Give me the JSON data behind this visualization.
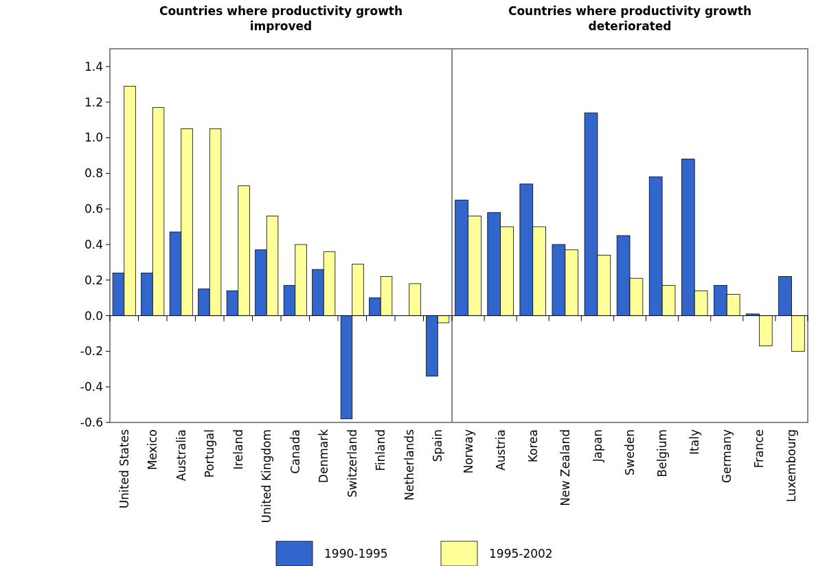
{
  "chart_data": [
    {
      "type": "bar",
      "title": "Countries where productivity growth improved",
      "categories": [
        "United States",
        "Mexico",
        "Australia",
        "Portugal",
        "Ireland",
        "United Kingdom",
        "Canada",
        "Denmark",
        "Switzerland",
        "Finland",
        "Netherlands",
        "Spain"
      ],
      "series": [
        {
          "name": "1990-1995",
          "color": "#3366cc",
          "values": [
            0.24,
            0.24,
            0.47,
            0.15,
            0.14,
            0.37,
            0.17,
            0.26,
            -0.58,
            0.1,
            null,
            -0.34
          ]
        },
        {
          "name": "1995-2002",
          "color": "#ffff99",
          "values": [
            1.29,
            1.17,
            1.05,
            1.05,
            0.73,
            0.56,
            0.4,
            0.36,
            0.29,
            0.22,
            0.18,
            -0.04
          ]
        }
      ],
      "ylim": [
        -0.6,
        1.5
      ],
      "yticks": [
        {
          "value": -0.6,
          "label": "-0.6"
        },
        {
          "value": -0.4,
          "label": "-0.4"
        },
        {
          "value": -0.2,
          "label": "-0.2"
        },
        {
          "value": 0,
          "label": "0.0"
        },
        {
          "value": 0.2,
          "label": "0.2"
        },
        {
          "value": 0.4,
          "label": "0.4"
        },
        {
          "value": 0.6,
          "label": "0.6"
        },
        {
          "value": 0.8,
          "label": "0.8"
        },
        {
          "value": 1,
          "label": "1.0"
        },
        {
          "value": 1.2,
          "label": "1.2"
        },
        {
          "value": 1.4,
          "label": "1.4"
        }
      ],
      "legend": "bottom"
    },
    {
      "type": "bar",
      "title": "Countries where productivity growth deteriorated",
      "categories": [
        "Norway",
        "Austria",
        "Korea",
        "New Zealand",
        "Japan",
        "Sweden",
        "Belgium",
        "Italy",
        "Germany",
        "France",
        "Luxembourg"
      ],
      "series": [
        {
          "color": "#3366cc",
          "values": [
            0.65,
            0.58,
            0.74,
            0.4,
            1.14,
            0.45,
            0.78,
            0.88,
            0.17,
            0.01,
            0.22
          ]
        },
        {
          "color": "#ffff99",
          "values": [
            0.56,
            0.5,
            0.5,
            0.37,
            0.34,
            0.21,
            0.17,
            0.14,
            0.12,
            -0.17,
            -0.2
          ]
        }
      ],
      "ylim": [
        -0.6,
        1.5
      ],
      "tick_labels": "x",
      "legend": false
    }
  ]
}
